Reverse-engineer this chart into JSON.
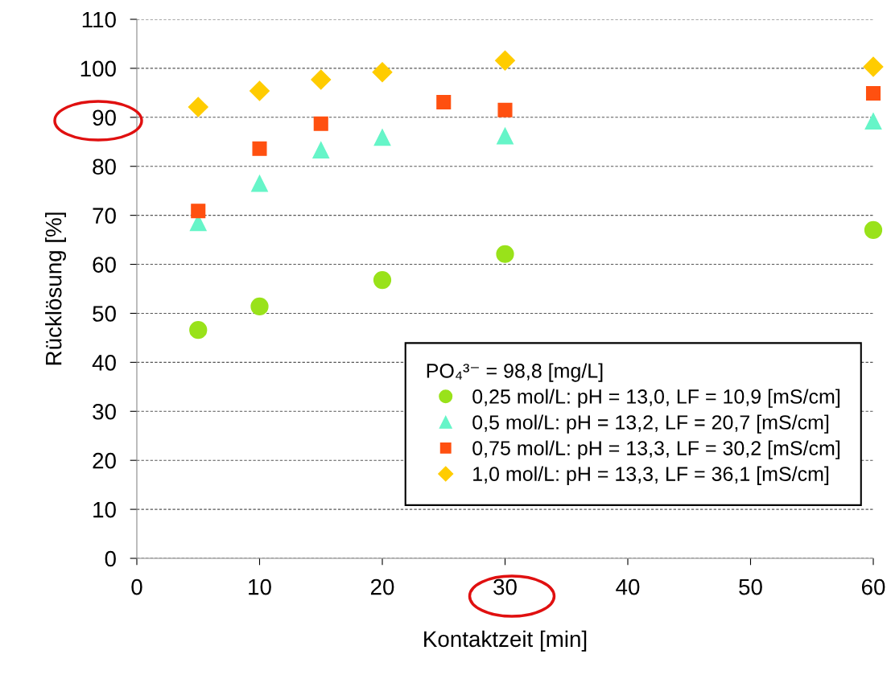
{
  "chart_data": {
    "type": "scatter",
    "xlabel": "Kontaktzeit [min]",
    "ylabel": "Rücklösung [%]",
    "legend_title": "PO₄³⁻ = 98,8 [mg/L]",
    "xlim": [
      0,
      60
    ],
    "xticks": [
      0,
      10,
      20,
      30,
      40,
      50,
      60
    ],
    "ylim": [
      0,
      110
    ],
    "yticks": [
      0,
      10,
      20,
      30,
      40,
      50,
      60,
      70,
      80,
      90,
      100,
      110
    ],
    "grid": "y",
    "legend": "bottom right",
    "series": [
      {
        "name": "0,25 mol/L: pH = 13,0, LF = 10,9 [mS/cm]",
        "color": "#99e21a",
        "marker": "circle",
        "x": [
          5,
          10,
          20,
          30,
          60
        ],
        "values": [
          46.6,
          51.4,
          56.8,
          62.1,
          67.0
        ]
      },
      {
        "name": "0,5 mol/L: pH = 13,2, LF = 20,7 [mS/cm]",
        "color": "#66f5c8",
        "marker": "triangle",
        "x": [
          5,
          10,
          15,
          20,
          30,
          60
        ],
        "values": [
          68.5,
          76.5,
          83.3,
          85.9,
          86.2,
          89.2
        ]
      },
      {
        "name": "0,75 mol/L: pH = 13,3, LF = 30,2 [mS/cm]",
        "color": "#ff5010",
        "marker": "square",
        "x": [
          5,
          10,
          15,
          25,
          30,
          60
        ],
        "values": [
          70.9,
          83.6,
          88.7,
          93.1,
          91.5,
          94.9
        ]
      },
      {
        "name": "1,0 mol/L: pH = 13,3, LF = 36,1 [mS/cm]",
        "color": "#ffcc00",
        "marker": "diamond",
        "x": [
          5,
          10,
          15,
          20,
          30,
          60
        ],
        "values": [
          92.1,
          95.4,
          97.7,
          99.2,
          101.6,
          100.3
        ]
      }
    ]
  }
}
